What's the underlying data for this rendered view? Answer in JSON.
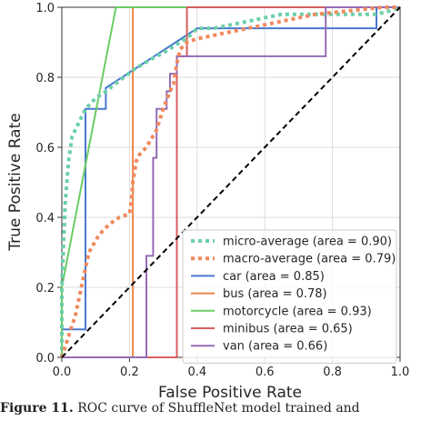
{
  "chart_data": {
    "type": "line",
    "title": "",
    "xlabel": "False Positive Rate",
    "ylabel": "True Positive Rate",
    "xlim": [
      0.0,
      1.0
    ],
    "ylim": [
      0.0,
      1.0
    ],
    "xticks": [
      "0.0",
      "0.2",
      "0.4",
      "0.6",
      "0.8",
      "1.0"
    ],
    "yticks": [
      "0.0",
      "0.2",
      "0.4",
      "0.6",
      "0.8",
      "1.0"
    ],
    "grid": true,
    "legend_position": "lower-right",
    "diagonal": {
      "x": [
        0,
        1
      ],
      "y": [
        0,
        1
      ],
      "style": "dashed",
      "color": "#000000"
    },
    "series": [
      {
        "name": "micro-average (area = 0.90)",
        "color": "#6ccfa8",
        "style": "dotted",
        "x": [
          0.0,
          0.0,
          0.01,
          0.02,
          0.03,
          0.05,
          0.07,
          0.1,
          0.13,
          0.17,
          0.21,
          0.26,
          0.3,
          0.35,
          0.38,
          0.4,
          0.45,
          0.5,
          0.55,
          0.6,
          0.65,
          0.7,
          0.78,
          0.85,
          0.93,
          0.97,
          1.0
        ],
        "y": [
          0.0,
          0.2,
          0.44,
          0.56,
          0.63,
          0.67,
          0.71,
          0.74,
          0.76,
          0.79,
          0.82,
          0.85,
          0.87,
          0.9,
          0.92,
          0.94,
          0.94,
          0.95,
          0.96,
          0.97,
          0.98,
          0.98,
          0.98,
          0.98,
          0.98,
          0.99,
          1.0
        ]
      },
      {
        "name": "macro-average (area = 0.79)",
        "color": "#ef8a5e",
        "style": "dotted",
        "x": [
          0.0,
          0.02,
          0.04,
          0.06,
          0.08,
          0.11,
          0.14,
          0.17,
          0.2,
          0.205,
          0.21,
          0.22,
          0.23,
          0.25,
          0.28,
          0.3,
          0.32,
          0.33,
          0.34,
          0.35,
          0.37,
          0.4,
          0.45,
          0.5,
          0.55,
          0.6,
          0.65,
          0.7,
          0.75,
          0.8,
          0.85,
          0.9,
          0.95,
          1.0
        ],
        "y": [
          0.0,
          0.06,
          0.12,
          0.21,
          0.3,
          0.35,
          0.38,
          0.4,
          0.41,
          0.44,
          0.5,
          0.56,
          0.58,
          0.6,
          0.65,
          0.71,
          0.76,
          0.78,
          0.84,
          0.88,
          0.9,
          0.91,
          0.92,
          0.93,
          0.94,
          0.95,
          0.96,
          0.97,
          0.98,
          0.985,
          0.99,
          0.995,
          1.0,
          1.0
        ]
      },
      {
        "name": "car (area = 0.85)",
        "color": "#4878d0",
        "style": "solid",
        "x": [
          0.0,
          0.0,
          0.07,
          0.07,
          0.13,
          0.13,
          0.4,
          0.93,
          0.93,
          1.0
        ],
        "y": [
          0.0,
          0.08,
          0.08,
          0.71,
          0.71,
          0.77,
          0.94,
          0.94,
          1.0,
          1.0
        ]
      },
      {
        "name": "bus (area = 0.78)",
        "color": "#ee854a",
        "style": "solid",
        "x": [
          0.0,
          0.0,
          0.21,
          0.21,
          0.22,
          0.22,
          1.0
        ],
        "y": [
          0.0,
          0.0,
          0.0,
          1.0,
          1.0,
          1.0,
          1.0
        ]
      },
      {
        "name": "motorcycle (area = 0.93)",
        "color": "#6acc64",
        "style": "solid",
        "x": [
          0.0,
          0.0,
          0.16,
          1.0
        ],
        "y": [
          0.0,
          0.2,
          1.0,
          1.0
        ]
      },
      {
        "name": "minibus (area = 0.65)",
        "color": "#d65f5f",
        "style": "solid",
        "x": [
          0.0,
          0.34,
          0.34,
          0.37,
          0.37,
          1.0
        ],
        "y": [
          0.0,
          0.0,
          0.86,
          0.86,
          1.0,
          1.0
        ]
      },
      {
        "name": "van (area = 0.66)",
        "color": "#956cb4",
        "style": "solid",
        "x": [
          0.0,
          0.25,
          0.25,
          0.27,
          0.27,
          0.28,
          0.28,
          0.31,
          0.31,
          0.32,
          0.32,
          0.34,
          0.34,
          0.78,
          0.78,
          1.0
        ],
        "y": [
          0.0,
          0.0,
          0.29,
          0.29,
          0.57,
          0.57,
          0.71,
          0.71,
          0.76,
          0.76,
          0.81,
          0.81,
          0.86,
          0.86,
          1.0,
          1.0
        ]
      }
    ]
  },
  "caption": {
    "label": "Figure 11.",
    "text": "ROC curve of ShuffleNet model trained and"
  },
  "colors": {
    "axis": "#333333",
    "grid": "#dddddd",
    "legend_border": "#cccccc"
  }
}
